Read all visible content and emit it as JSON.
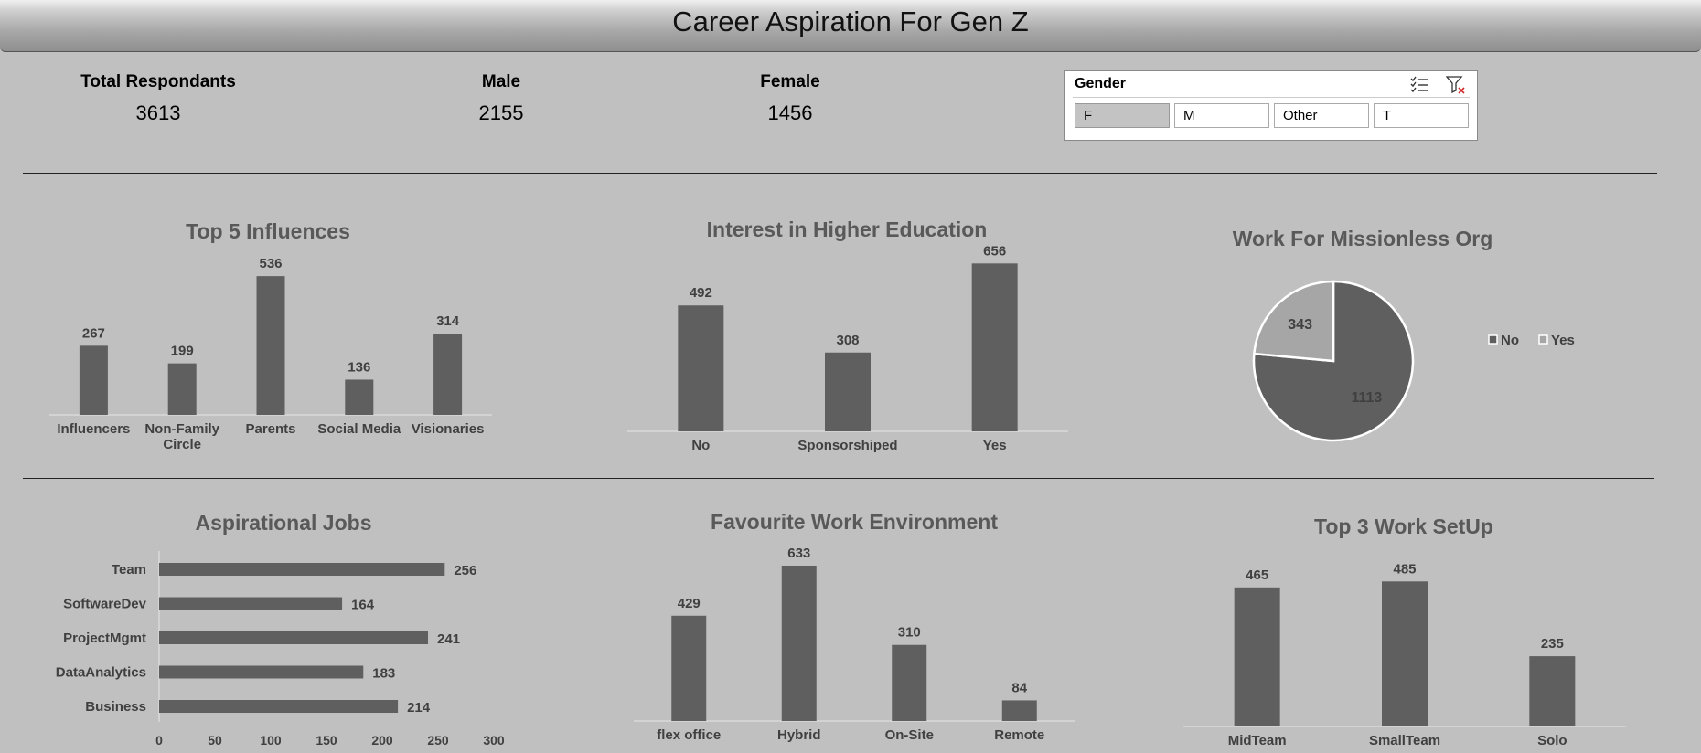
{
  "header": {
    "title": "Career Aspiration For Gen Z"
  },
  "kpis": [
    {
      "label": "Total Respondants",
      "value": "3613"
    },
    {
      "label": "Male",
      "value": "2155"
    },
    {
      "label": "Female",
      "value": "1456"
    }
  ],
  "slicer": {
    "title": "Gender",
    "options": [
      "F",
      "M",
      "Other",
      "T"
    ],
    "selected": "F",
    "icons": [
      "multi-select-icon",
      "clear-filter-icon"
    ]
  },
  "colors": {
    "bar": "#5f5f5f",
    "pie_no": "#5f5f5f",
    "pie_yes": "#a6a6a6",
    "title": "#595959",
    "background": "#c0c0c0"
  },
  "chart_data": [
    {
      "id": "influences",
      "type": "bar",
      "title": "Top 5 Influences",
      "categories": [
        "Influencers",
        "Non-Family Circle",
        "Parents",
        "Social Media",
        "Visionaries"
      ],
      "values": [
        267,
        199,
        536,
        136,
        314
      ],
      "ylim": [
        0,
        600
      ]
    },
    {
      "id": "higher_edu",
      "type": "bar",
      "title": "Interest in Higher Education",
      "categories": [
        "No",
        "Sponsorshiped",
        "Yes"
      ],
      "values": [
        492,
        308,
        656
      ],
      "ylim": [
        0,
        700
      ]
    },
    {
      "id": "missionless",
      "type": "pie",
      "title": "Work For Missionless Org",
      "categories": [
        "No",
        "Yes"
      ],
      "values": [
        1113,
        343
      ],
      "legend": "right"
    },
    {
      "id": "jobs",
      "type": "bar",
      "orientation": "horizontal",
      "title": "Aspirational Jobs",
      "categories": [
        "Team",
        "SoftwareDev",
        "ProjectMgmt",
        "DataAnalytics",
        "Business"
      ],
      "values": [
        256,
        164,
        241,
        183,
        214
      ],
      "xlim": [
        0,
        300
      ],
      "xticks": [
        0,
        50,
        100,
        150,
        200,
        250,
        300
      ]
    },
    {
      "id": "environment",
      "type": "bar",
      "title": "Favourite Work Environment",
      "categories": [
        "flex office",
        "Hybrid",
        "On-Site",
        "Remote"
      ],
      "values": [
        429,
        633,
        310,
        84
      ],
      "ylim": [
        0,
        700
      ]
    },
    {
      "id": "setup",
      "type": "bar",
      "title": "Top 3 Work SetUp",
      "categories": [
        "MidTeam",
        "SmallTeam",
        "Solo"
      ],
      "values": [
        465,
        485,
        235
      ],
      "ylim": [
        0,
        550
      ]
    }
  ]
}
